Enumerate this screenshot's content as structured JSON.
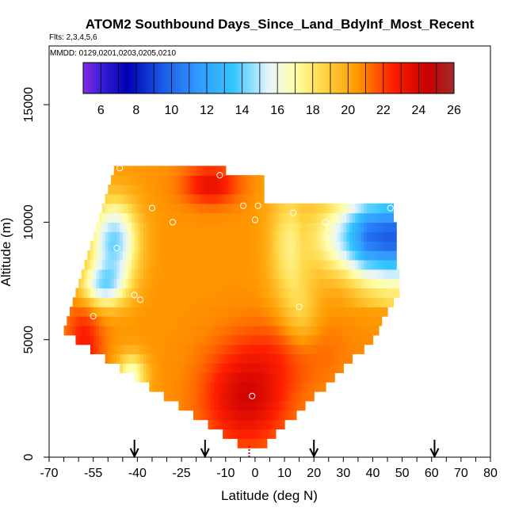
{
  "chart_data": {
    "type": "heatmap",
    "title": "ATOM2 Southbound Days_Since_Land_BdyInf_Most_Recent",
    "flights_label": "Flts: 2,3,4,5,6",
    "dates_label": "MMDD: 0129,0201,0203,0205,0210",
    "xlabel": "Latitude (deg N)",
    "ylabel": "Altitude (m)",
    "xlim": [
      -70,
      80
    ],
    "ylim": [
      0,
      17500
    ],
    "x_ticks": [
      -70,
      -55,
      -40,
      -25,
      -10,
      0,
      10,
      20,
      30,
      40,
      50,
      60,
      70,
      80
    ],
    "y_ticks": [
      0,
      5000,
      10000,
      15000
    ],
    "colorbar": {
      "range": [
        5,
        26
      ],
      "ticks": [
        6,
        8,
        10,
        12,
        14,
        16,
        18,
        20,
        22,
        24,
        26
      ],
      "colors": [
        {
          "v": 5,
          "c": "#8a2be2"
        },
        {
          "v": 6,
          "c": "#3a1fd6"
        },
        {
          "v": 7.5,
          "c": "#0000b4"
        },
        {
          "v": 9.5,
          "c": "#1a5ae6"
        },
        {
          "v": 11.5,
          "c": "#3399ff"
        },
        {
          "v": 13.5,
          "c": "#33c6ff"
        },
        {
          "v": 15.5,
          "c": "#e6f4ff"
        },
        {
          "v": 17,
          "c": "#ffffaa"
        },
        {
          "v": 18.5,
          "c": "#ffd94a"
        },
        {
          "v": 20.5,
          "c": "#ff9a00"
        },
        {
          "v": 22.5,
          "c": "#ff2000"
        },
        {
          "v": 24.5,
          "c": "#c80000"
        },
        {
          "v": 26,
          "c": "#a52a2a"
        }
      ]
    },
    "flight_profile_markers_lat": [
      -41,
      -17,
      20,
      61
    ],
    "surface_marker_lat": -2,
    "sample_points": [
      {
        "lat": -46,
        "alt": 12300
      },
      {
        "lat": -12,
        "alt": 12000
      },
      {
        "lat": -35,
        "alt": 10600
      },
      {
        "lat": -28,
        "alt": 10000
      },
      {
        "lat": -4,
        "alt": 10700
      },
      {
        "lat": 1,
        "alt": 10700
      },
      {
        "lat": 0,
        "alt": 10100
      },
      {
        "lat": 13,
        "alt": 10400
      },
      {
        "lat": 24,
        "alt": 10000
      },
      {
        "lat": 46,
        "alt": 10600
      },
      {
        "lat": -47,
        "alt": 8900
      },
      {
        "lat": -41,
        "alt": 6900
      },
      {
        "lat": -39,
        "alt": 6700
      },
      {
        "lat": 15,
        "alt": 6400
      },
      {
        "lat": -55,
        "alt": 6000
      },
      {
        "lat": -68,
        "alt": 5800
      },
      {
        "lat": -55,
        "alt": 3600
      },
      {
        "lat": -39,
        "alt": 3000
      },
      {
        "lat": -1,
        "alt": 2600
      },
      {
        "lat": 50,
        "alt": 7200
      }
    ],
    "boundary": {
      "top_left": [
        [
          -62,
          6700
        ],
        [
          -47,
          12500
        ]
      ],
      "top": [
        [
          -47,
          12500
        ],
        [
          -10,
          12500
        ],
        [
          -10,
          12000
        ],
        [
          3,
          12000
        ],
        [
          3,
          10800
        ],
        [
          47,
          10800
        ],
        [
          49,
          7100
        ]
      ],
      "bottom": [
        [
          -68,
          5600
        ],
        [
          -5,
          500
        ],
        [
          3,
          500
        ],
        [
          40,
          5000
        ],
        [
          49,
          7100
        ]
      ]
    }
  }
}
